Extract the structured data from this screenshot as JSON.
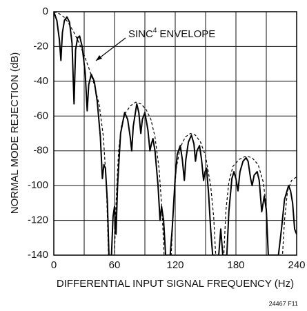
{
  "chart_data": {
    "type": "line",
    "xlabel": "DIFFERENTIAL INPUT SIGNAL FREQUENCY (Hz)",
    "ylabel": "NORMAL MODE REJECTION (dB)",
    "xlim": [
      0,
      240
    ],
    "ylim": [
      -140,
      0
    ],
    "xticks": [
      0,
      60,
      120,
      180,
      240
    ],
    "xminor": [
      30,
      90,
      150,
      210
    ],
    "yticks": [
      -140,
      -120,
      -100,
      -80,
      -60,
      -40,
      -20,
      0
    ],
    "grid": true,
    "annotation": {
      "base": "SINC",
      "superscript": "4",
      "rest": "ENVELOPE"
    },
    "footer": "24467 F11",
    "series": [
      {
        "style": "solid",
        "color": "#000000",
        "x": [
          0,
          3,
          5.5,
          7,
          8.5,
          10.5,
          13,
          15.5,
          18,
          20,
          21.5,
          23.5,
          25.5,
          28,
          31,
          33,
          34.5,
          37,
          40,
          43,
          46,
          48,
          49.5,
          51,
          53,
          54.5,
          57,
          58.5,
          60,
          61.5,
          63,
          66,
          70,
          73,
          75.5,
          77,
          78.5,
          82,
          84,
          86,
          87.5,
          90,
          93,
          95,
          96.5,
          98,
          100,
          103,
          105,
          106.5,
          108.5,
          110.5,
          115,
          117,
          120,
          122,
          125,
          127,
          129,
          130.5,
          133,
          136,
          138.5,
          140,
          141.5,
          144,
          146,
          148,
          149.5,
          151,
          153,
          155,
          157,
          163,
          165,
          167,
          171,
          173,
          176,
          178,
          180,
          182,
          184,
          187,
          190,
          192,
          194.5,
          196,
          198,
          201,
          203,
          205.5,
          208,
          210,
          212,
          222,
          225,
          228,
          232,
          234,
          236,
          238,
          240
        ],
        "values": [
          0,
          -5,
          -16,
          -28,
          -12,
          -5,
          -3,
          -6,
          -18,
          -53,
          -22,
          -15,
          -14,
          -20,
          -35,
          -57,
          -42,
          -36,
          -40,
          -52,
          -72,
          -96,
          -88,
          -90,
          -110,
          -140,
          -140,
          -118,
          -112,
          -128,
          -100,
          -70,
          -58,
          -62,
          -72,
          -80,
          -66,
          -53,
          -58,
          -70,
          -62,
          -58,
          -68,
          -80,
          -76,
          -73,
          -80,
          -100,
          -120,
          -112,
          -120,
          -140,
          -140,
          -125,
          -95,
          -82,
          -77,
          -85,
          -97,
          -85,
          -75,
          -71,
          -76,
          -86,
          -80,
          -77,
          -85,
          -97,
          -92,
          -90,
          -105,
          -125,
          -140,
          -140,
          -125,
          -140,
          -140,
          -115,
          -96,
          -92,
          -96,
          -103,
          -92,
          -86,
          -84,
          -86,
          -96,
          -100,
          -94,
          -92,
          -97,
          -115,
          -106,
          -114,
          -140,
          -140,
          -125,
          -108,
          -100,
          -103,
          -110,
          -125,
          -128
        ]
      },
      {
        "style": "dashed",
        "color": "#000000",
        "x": [
          0,
          5,
          10,
          15,
          20,
          25,
          30,
          35,
          40,
          45,
          49,
          52,
          54,
          60,
          61.5,
          64,
          67,
          71,
          76,
          81,
          86,
          91,
          96,
          100,
          104,
          107,
          109,
          116,
          118,
          121,
          125,
          130,
          135,
          140,
          145,
          150,
          155,
          158,
          160,
          168,
          170,
          173,
          177,
          183,
          190,
          196,
          202,
          207,
          210,
          212,
          226,
          228,
          231,
          235,
          240
        ],
        "values": [
          0,
          -1,
          -3,
          -7,
          -12,
          -18,
          -25,
          -33,
          -42,
          -54,
          -72,
          -100,
          -140,
          -140,
          -110,
          -80,
          -65,
          -58,
          -54,
          -52,
          -53,
          -56,
          -62,
          -72,
          -90,
          -115,
          -140,
          -140,
          -115,
          -90,
          -78,
          -72,
          -70,
          -71,
          -75,
          -83,
          -100,
          -118,
          -140,
          -140,
          -115,
          -98,
          -89,
          -85,
          -83,
          -84,
          -88,
          -98,
          -112,
          -140,
          -140,
          -120,
          -103,
          -97,
          -95
        ]
      }
    ]
  }
}
